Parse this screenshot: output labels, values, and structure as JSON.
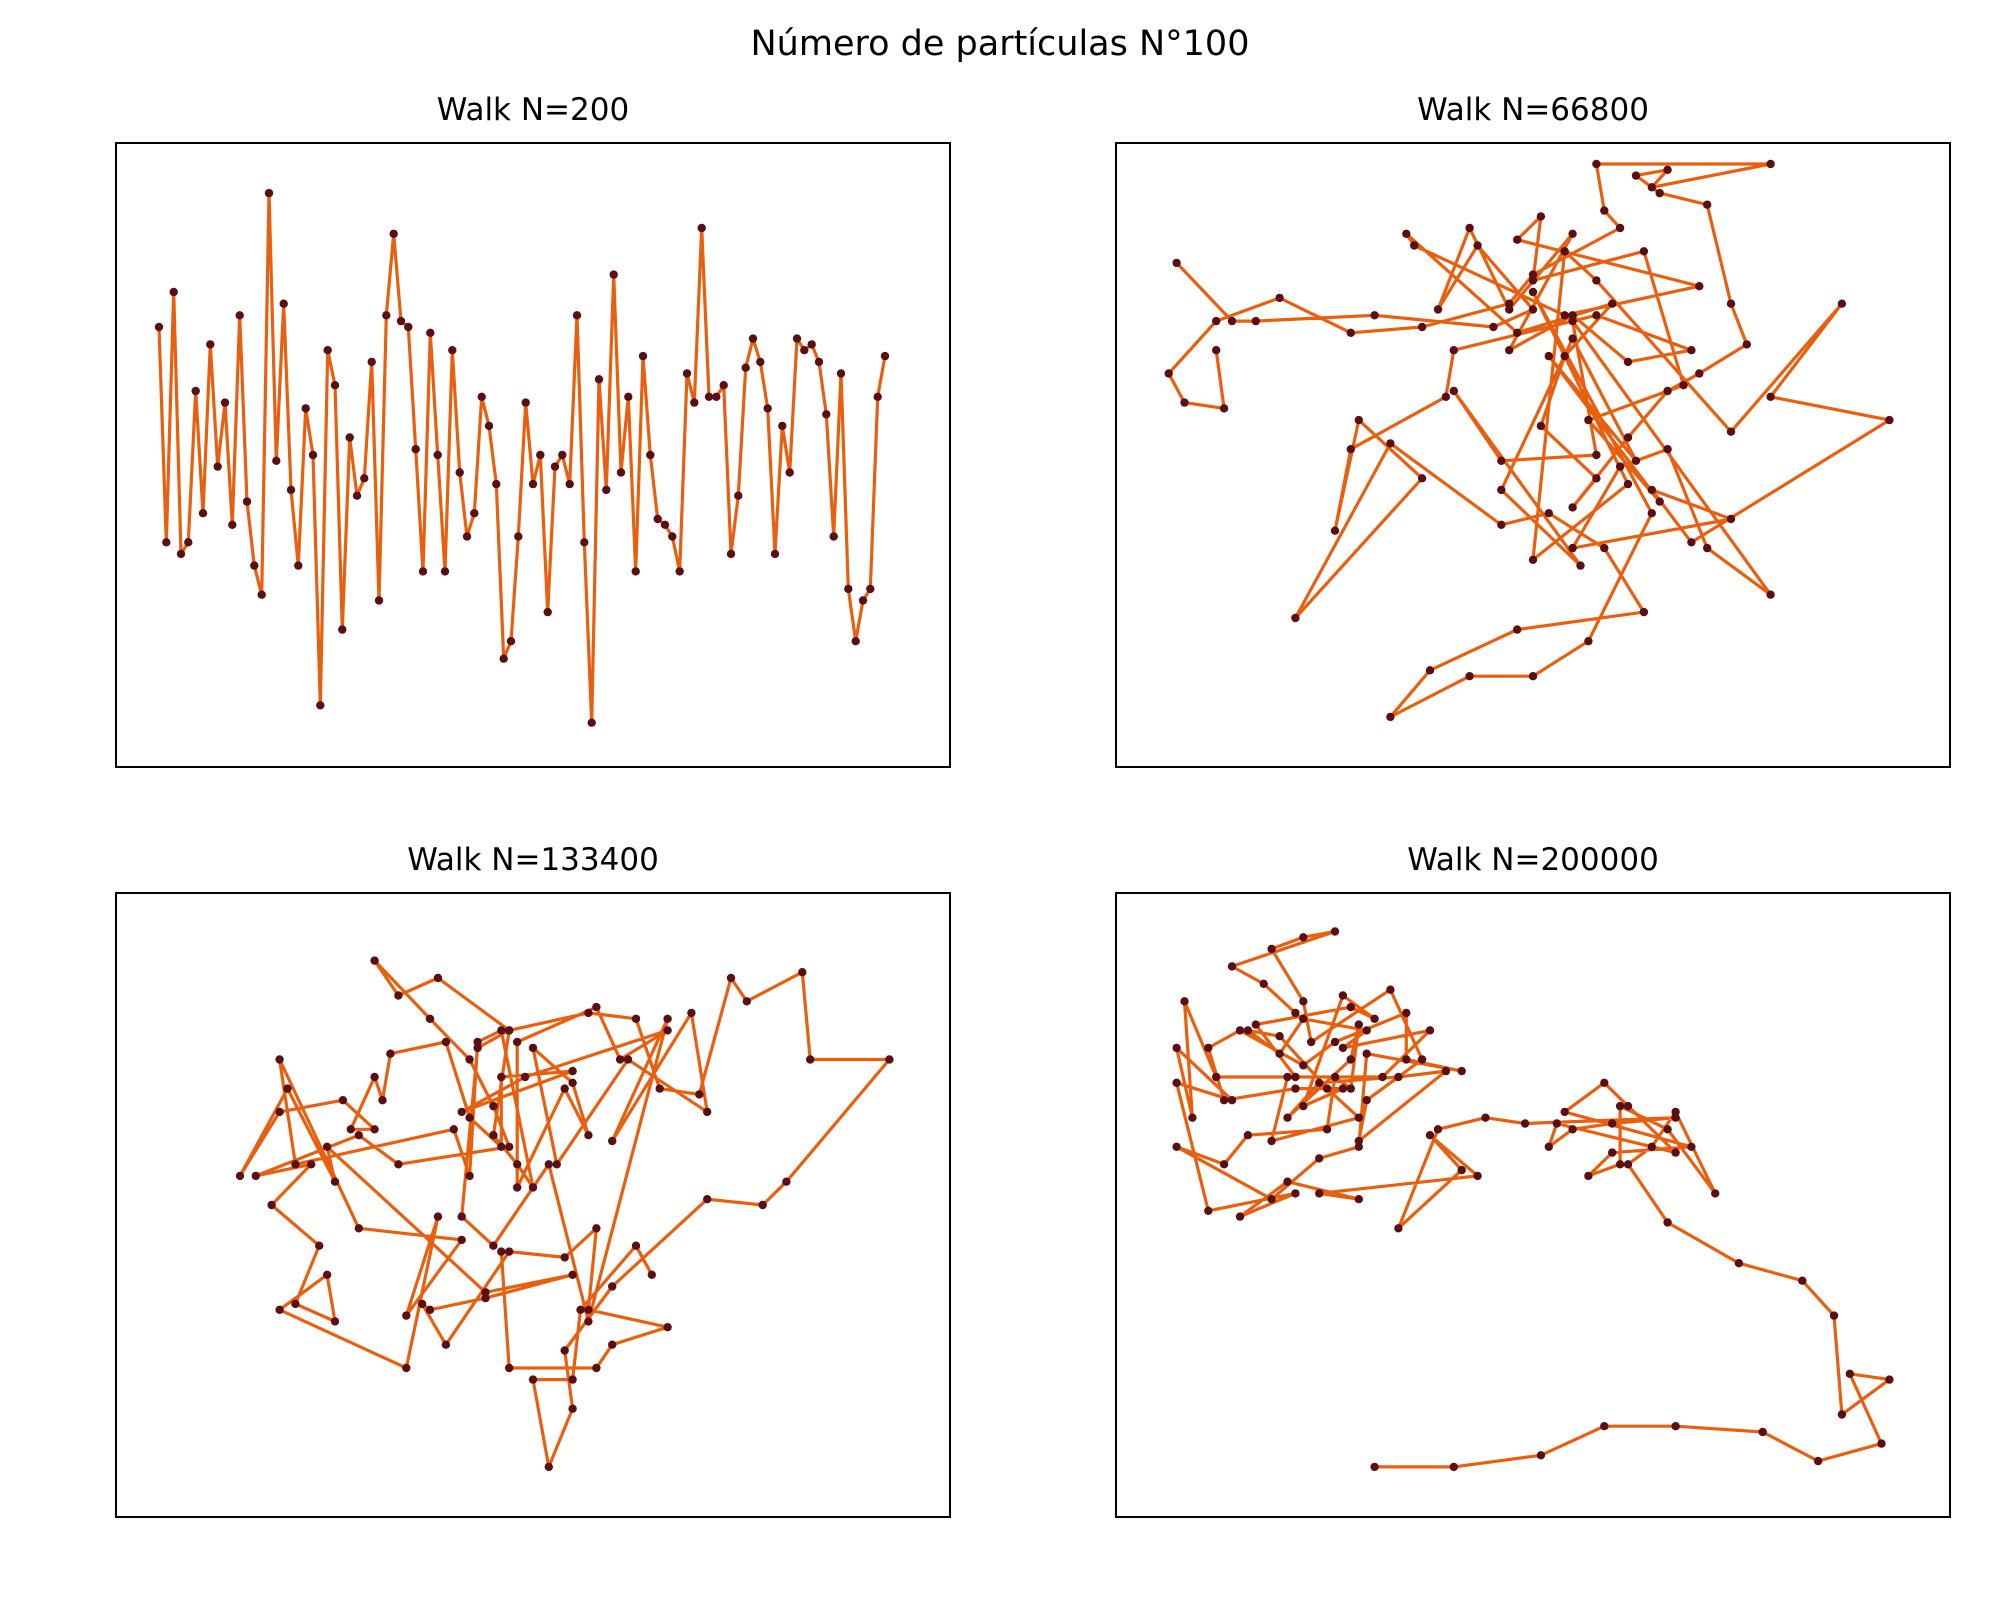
{
  "figure": {
    "suptitle": "Número de partículas N°100",
    "line_color": "#e8600f",
    "marker_color": "#5a0f14"
  },
  "chart_data": [
    {
      "type": "line",
      "title": "Walk N=200",
      "xlabel": "",
      "ylabel": "",
      "xlim": [
        -3,
        105
      ],
      "ylim": [
        0,
        100
      ],
      "ticks_visible": false,
      "grid": false,
      "x": [
        0,
        1,
        2,
        3,
        4,
        5,
        6,
        7,
        8,
        9,
        10,
        11,
        12,
        13,
        14,
        15,
        16,
        17,
        18,
        19,
        20,
        21,
        22,
        23,
        24,
        25,
        26,
        27,
        28,
        29,
        30,
        31,
        32,
        33,
        34,
        35,
        36,
        37,
        38,
        39,
        40,
        41,
        42,
        43,
        44,
        45,
        46,
        47,
        48,
        49,
        50,
        51,
        52,
        53,
        54,
        55,
        56,
        57,
        58,
        59,
        60,
        61,
        62,
        63,
        64,
        65,
        66,
        67,
        68,
        69,
        70,
        71,
        72,
        73,
        74,
        75,
        76,
        77,
        78,
        79,
        80,
        81,
        82,
        83,
        84,
        85,
        86,
        87,
        88,
        89,
        90,
        91,
        92,
        93,
        94,
        95,
        96,
        97,
        98,
        99
      ],
      "y": [
        72,
        35,
        78,
        33,
        35,
        61,
        40,
        69,
        48,
        59,
        38,
        74,
        42,
        31,
        26,
        95,
        49,
        76,
        44,
        31,
        58,
        50,
        7,
        68,
        62,
        20,
        53,
        43,
        46,
        66,
        25,
        74,
        88,
        73,
        72,
        51,
        30,
        71,
        50,
        30,
        68,
        47,
        36,
        40,
        60,
        55,
        45,
        15,
        18,
        36,
        59,
        45,
        50,
        23,
        48,
        50,
        45,
        74,
        35,
        4,
        63,
        44,
        81,
        47,
        60,
        30,
        67,
        50,
        39,
        38,
        36,
        30,
        64,
        59,
        89,
        60,
        60,
        62,
        33,
        43,
        65,
        70,
        66,
        58,
        33,
        55,
        47,
        70,
        68,
        69,
        66,
        57,
        36,
        64,
        27,
        18,
        25,
        27,
        60,
        67
      ]
    },
    {
      "type": "line",
      "title": "Walk N=66800",
      "xlabel": "",
      "ylabel": "",
      "xlim": [
        0,
        100
      ],
      "ylim": [
        0,
        100
      ],
      "ticks_visible": false,
      "grid": false,
      "x": [
        5,
        12,
        15,
        30,
        45,
        50,
        43,
        38,
        42,
        47,
        55,
        47,
        55,
        62,
        70,
        58,
        40,
        39,
        27,
        25,
        28,
        36,
        20,
        32,
        46,
        52,
        59,
        64,
        48,
        37,
        32,
        42,
        50,
        57,
        65,
        50,
        62,
        50,
        54,
        58,
        75,
        89,
        80,
        95,
        70,
        65,
        75,
        55,
        61,
        67,
        72,
        80,
        55,
        58,
        46,
        40,
        56,
        46,
        55,
        63,
        52,
        66,
        57,
        69,
        64,
        50,
        51,
        48,
        71,
        54,
        35,
        34,
        48,
        60,
        54,
        51,
        58,
        55,
        62,
        67,
        71,
        77,
        75,
        72,
        66,
        63,
        67,
        65,
        80,
        58,
        59,
        61,
        50,
        47,
        36,
        27,
        18,
        10,
        4,
        6,
        11,
        10
      ],
      "y": [
        83,
        73,
        73,
        74,
        72,
        75,
        86,
        75,
        89,
        75,
        88,
        68,
        74,
        66,
        68,
        74,
        68,
        60,
        51,
        37,
        56,
        46,
        22,
        52,
        38,
        40,
        34,
        23,
        20,
        13,
        5,
        12,
        12,
        18,
        40,
        78,
        45,
        32,
        85,
        80,
        54,
        76,
        60,
        56,
        35,
        44,
        39,
        34,
        48,
        51,
        34,
        26,
        73,
        50,
        49,
        61,
        31,
        44,
        70,
        49,
        67,
        42,
        56,
        62,
        85,
        80,
        91,
        87,
        79,
        74,
        86,
        88,
        71,
        76,
        67,
        55,
        46,
        41,
        53,
        61,
        64,
        69,
        76,
        93,
        95,
        98,
        99,
        96,
        100,
        100,
        92,
        89,
        81,
        76,
        72,
        71,
        77,
        73,
        64,
        59,
        58,
        68
      ]
    },
    {
      "type": "line",
      "title": "Walk N=133400",
      "xlabel": "",
      "ylabel": "",
      "xlim": [
        0,
        100
      ],
      "ylim": [
        0,
        100
      ],
      "ticks_visible": false,
      "grid": false,
      "x": [
        65,
        63,
        56,
        55,
        50,
        52,
        55,
        54,
        60,
        72,
        79,
        82,
        95,
        85,
        84,
        77,
        75,
        71,
        66,
        63,
        57,
        47,
        38,
        33,
        30,
        37,
        42,
        45,
        47,
        33,
        28,
        15,
        22,
        17,
        23,
        20,
        25,
        24,
        18,
        34,
        38,
        34,
        41,
        28,
        18,
        20,
        40,
        42,
        43,
        46,
        50,
        48,
        45,
        47,
        43,
        41,
        45,
        52,
        57,
        67,
        60,
        70,
        72,
        62,
        53,
        50,
        55,
        57,
        54,
        48,
        48,
        58,
        61,
        67,
        49,
        41,
        55,
        46,
        46,
        42,
        39,
        32,
        31,
        30,
        27,
        30,
        26,
        18,
        13,
        19,
        25,
        24,
        44,
        55,
        44,
        37,
        36,
        39,
        47,
        54,
        58,
        57,
        67,
        60,
        58,
        47,
        46
      ],
      "y": [
        38,
        43,
        32,
        20,
        20,
        5,
        15,
        25,
        36,
        51,
        50,
        54,
        75,
        75,
        90,
        85,
        89,
        69,
        70,
        82,
        83,
        80,
        89,
        86,
        92,
        82,
        75,
        67,
        60,
        57,
        62,
        55,
        57,
        50,
        43,
        33,
        30,
        38,
        32,
        22,
        48,
        31,
        44,
        46,
        75,
        57,
        63,
        55,
        78,
        80,
        53,
        57,
        62,
        80,
        77,
        48,
        43,
        57,
        30,
        82,
        61,
        83,
        66,
        75,
        57,
        77,
        71,
        62,
        70,
        53,
        78,
        84,
        75,
        80,
        72,
        66,
        73,
        72,
        60,
        65,
        78,
        76,
        68,
        72,
        63,
        63,
        68,
        66,
        55,
        70,
        54,
        60,
        35,
        38,
        34,
        32,
        33,
        26,
        42,
        41,
        46,
        32,
        29,
        26,
        22,
        22,
        42
      ]
    },
    {
      "type": "line",
      "title": "Walk N=200000",
      "xlabel": "",
      "ylabel": "",
      "xlim": [
        0,
        100
      ],
      "ylim": [
        0,
        100
      ],
      "ticks_visible": false,
      "grid": false,
      "x": [
        30,
        40,
        51,
        59,
        68,
        79,
        86,
        94,
        90,
        95,
        89,
        88,
        84,
        76,
        67,
        62,
        65,
        68,
        73,
        67,
        61,
        61,
        57,
        60,
        70,
        54,
        59,
        62,
        68,
        53,
        52,
        55,
        60,
        68,
        49,
        44,
        38,
        33,
        41,
        37,
        43,
        23,
        28,
        19,
        13,
        20,
        9,
        5,
        12,
        5,
        7,
        6,
        10,
        19,
        17,
        28,
        24,
        18,
        14,
        18,
        21,
        29,
        26,
        37,
        31,
        20,
        15,
        27,
        30,
        26,
        21,
        26,
        20,
        11,
        9,
        13,
        21,
        25,
        34,
        34,
        41,
        29,
        28,
        23,
        17,
        5,
        11,
        14,
        24,
        25,
        27,
        28,
        27,
        19,
        23,
        33,
        39,
        28,
        29,
        36,
        32,
        22,
        21,
        17,
        21,
        25,
        12,
        16,
        20
      ],
      "y": [
        5,
        5,
        7,
        12,
        12,
        11,
        6,
        9,
        21,
        20,
        14,
        31,
        37,
        40,
        47,
        57,
        60,
        66,
        52,
        63,
        67,
        57,
        55,
        59,
        60,
        66,
        71,
        67,
        59,
        64,
        60,
        63,
        64,
        65,
        64,
        65,
        63,
        46,
        56,
        62,
        55,
        52,
        51,
        54,
        48,
        52,
        49,
        71,
        68,
        77,
        65,
        85,
        72,
        72,
        61,
        65,
        70,
        79,
        80,
        76,
        82,
        80,
        77,
        80,
        72,
        72,
        81,
        84,
        82,
        86,
        67,
        70,
        70,
        68,
        77,
        80,
        74,
        78,
        83,
        75,
        73,
        76,
        60,
        58,
        51,
        60,
        57,
        62,
        63,
        72,
        70,
        81,
        75,
        65,
        71,
        72,
        73,
        61,
        68,
        75,
        87,
        78,
        85,
        94,
        96,
        97,
        91,
        88,
        83
      ]
    }
  ]
}
